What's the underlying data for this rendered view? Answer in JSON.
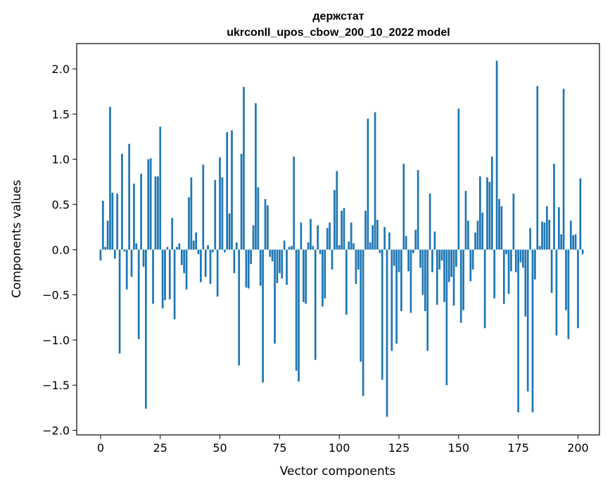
{
  "chart_data": {
    "type": "bar",
    "title": [
      "держстат",
      "ukrconll_upos_cbow_200_10_2022 model"
    ],
    "xlabel": "Vector components",
    "ylabel": "Components values",
    "xlim": [
      -10,
      209
    ],
    "ylim": [
      -2.05,
      2.28
    ],
    "xticks": [
      0,
      25,
      50,
      75,
      100,
      125,
      150,
      175,
      200
    ],
    "yticks": [
      -2.0,
      -1.5,
      -1.0,
      -0.5,
      0.0,
      0.5,
      1.0,
      1.5,
      2.0
    ],
    "ytick_labels": [
      "−2.0",
      "−1.5",
      "−1.0",
      "−0.5",
      "0.0",
      "0.5",
      "1.0",
      "1.5",
      "2.0"
    ],
    "grid": false,
    "bar_color": "#1f77b4",
    "values": [
      -0.12,
      0.54,
      0.03,
      0.32,
      1.58,
      0.63,
      -0.1,
      0.62,
      -1.15,
      1.06,
      -0.02,
      -0.44,
      1.17,
      -0.3,
      0.73,
      0.07,
      -0.99,
      0.84,
      -0.19,
      -1.76,
      1.0,
      1.01,
      -0.6,
      0.81,
      0.81,
      1.36,
      -0.65,
      -0.56,
      0.03,
      -0.55,
      0.35,
      -0.77,
      0.03,
      0.07,
      -0.17,
      -0.26,
      -0.44,
      0.58,
      0.8,
      0.1,
      0.19,
      -0.05,
      -0.36,
      0.94,
      -0.3,
      0.05,
      -0.38,
      -0.03,
      0.77,
      -0.52,
      1.02,
      0.8,
      -0.03,
      1.3,
      0.4,
      1.32,
      -0.26,
      0.08,
      -1.28,
      1.06,
      1.8,
      -0.42,
      -0.43,
      -0.16,
      0.27,
      1.62,
      0.69,
      -0.4,
      -1.47,
      0.56,
      0.49,
      -0.08,
      -0.13,
      -1.04,
      -0.37,
      -0.26,
      -0.32,
      0.1,
      -0.39,
      0.03,
      0.04,
      1.03,
      -1.34,
      -1.46,
      0.3,
      -0.58,
      -0.6,
      0.08,
      0.34,
      0.04,
      -1.22,
      0.27,
      -0.05,
      -0.63,
      -0.54,
      0.24,
      0.3,
      -0.22,
      0.66,
      0.87,
      0.05,
      0.43,
      0.46,
      -0.72,
      0.09,
      0.3,
      0.07,
      -0.38,
      -0.22,
      -1.24,
      -1.62,
      0.43,
      1.45,
      0.08,
      0.27,
      1.52,
      0.33,
      -0.04,
      -1.44,
      0.25,
      -1.85,
      0.19,
      -1.12,
      -0.18,
      -1.04,
      -0.25,
      -0.68,
      0.95,
      0.15,
      -0.24,
      -0.7,
      -0.04,
      0.22,
      0.88,
      -0.2,
      -0.5,
      -0.68,
      -1.12,
      0.62,
      -0.25,
      0.2,
      -0.61,
      -0.22,
      -0.12,
      -0.58,
      -1.5,
      -0.36,
      -0.3,
      -0.62,
      -0.19,
      1.56,
      -0.81,
      -0.67,
      0.65,
      0.32,
      -0.35,
      -0.22,
      0.19,
      0.32,
      0.81,
      0.41,
      -0.87,
      0.8,
      0.75,
      1.03,
      -0.54,
      2.09,
      0.56,
      0.48,
      -0.6,
      -0.05,
      -0.49,
      -0.24,
      0.62,
      -0.25,
      -1.8,
      -0.14,
      -0.2,
      -0.74,
      -1.57,
      0.24,
      -1.8,
      -0.33,
      1.81,
      0.04,
      0.31,
      0.3,
      0.48,
      0.33,
      -0.48,
      0.95,
      -0.95,
      0.47,
      0.17,
      1.78,
      -0.67,
      -0.99,
      0.32,
      0.16,
      0.17,
      -0.87,
      0.79,
      -0.05
    ]
  }
}
